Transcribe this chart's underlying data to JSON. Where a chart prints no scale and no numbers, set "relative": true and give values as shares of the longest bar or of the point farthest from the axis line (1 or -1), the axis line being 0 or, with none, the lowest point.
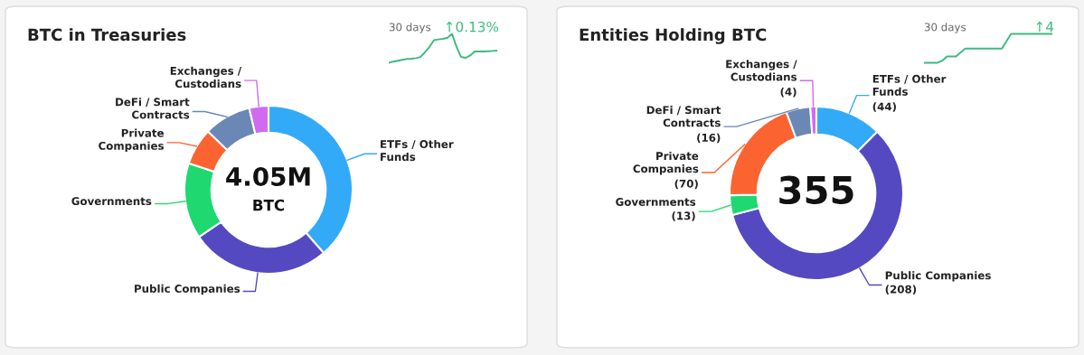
{
  "chart_data": [
    {
      "type": "donut",
      "title": "BTC in Treasuries",
      "categories": [
        "ETFs / Other\nFunds",
        "Public Companies",
        "Governments",
        "Private\nCompanies",
        "DeFi / Smart\nContracts",
        "Exchanges /\nCustodians"
      ],
      "values": [
        38.6,
        26.9,
        14.6,
        7.1,
        9.1,
        3.7
      ],
      "colors": [
        "#33aaf7",
        "#5549c2",
        "#1fd870",
        "#fb6431",
        "#6a87b5",
        "#d06af0"
      ],
      "annotations": [
        "4.05M",
        "BTC"
      ]
    },
    {
      "type": "line",
      "relative": true,
      "categories": [
        null,
        null,
        null,
        null,
        null,
        null,
        null,
        null,
        null,
        null,
        null,
        null,
        null,
        null,
        null,
        null,
        null,
        null,
        null,
        null,
        null,
        null,
        null,
        null,
        null
      ],
      "series": [
        {
          "color": "#3dbb7f",
          "values": [
            0,
            0.04,
            0.07,
            0.1,
            0.13,
            0.14,
            0.16,
            0.2,
            0.36,
            0.55,
            0.78,
            0.81,
            0.83,
            0.87,
            1,
            0.55,
            0.2,
            0.17,
            0.25,
            0.39,
            0.39,
            0.39,
            0.4,
            0.41,
            0.42
          ]
        }
      ],
      "annotations": [
        "30 days",
        "↑0.13%"
      ]
    },
    {
      "type": "donut",
      "title": "Entities Holding BTC",
      "categories": [
        "ETFs / Other\nFunds",
        "Public Companies",
        "Governments",
        "Private\nCompanies",
        "DeFi / Smart\nContracts",
        "Exchanges /\nCustodians"
      ],
      "values": [
        44,
        208,
        13,
        70,
        16,
        4
      ],
      "colors": [
        "#33aaf7",
        "#5549c2",
        "#1fd870",
        "#fb6431",
        "#6a87b5",
        "#d06af0"
      ],
      "value_labels": [
        "(44)",
        "(208)",
        "(13)",
        "(70)",
        "(16)",
        "(4)"
      ],
      "annotations": [
        "355"
      ]
    },
    {
      "type": "line",
      "relative": true,
      "categories": [
        null,
        null,
        null,
        null,
        null,
        null,
        null,
        null,
        null,
        null,
        null,
        null,
        null,
        null,
        null,
        null,
        null,
        null,
        null,
        null,
        null,
        null,
        null,
        null,
        null,
        null,
        null,
        null,
        null
      ],
      "series": [
        {
          "color": "#3dbb7f",
          "values": [
            0,
            0,
            0,
            0,
            0.07,
            0.22,
            0.22,
            0.22,
            0.36,
            0.49,
            0.49,
            0.49,
            0.49,
            0.49,
            0.49,
            0.49,
            0.49,
            0.49,
            0.75,
            1,
            1,
            1,
            1,
            1,
            1,
            1,
            1,
            1,
            1
          ]
        }
      ],
      "annotations": [
        "30 days",
        "↑4"
      ]
    }
  ]
}
